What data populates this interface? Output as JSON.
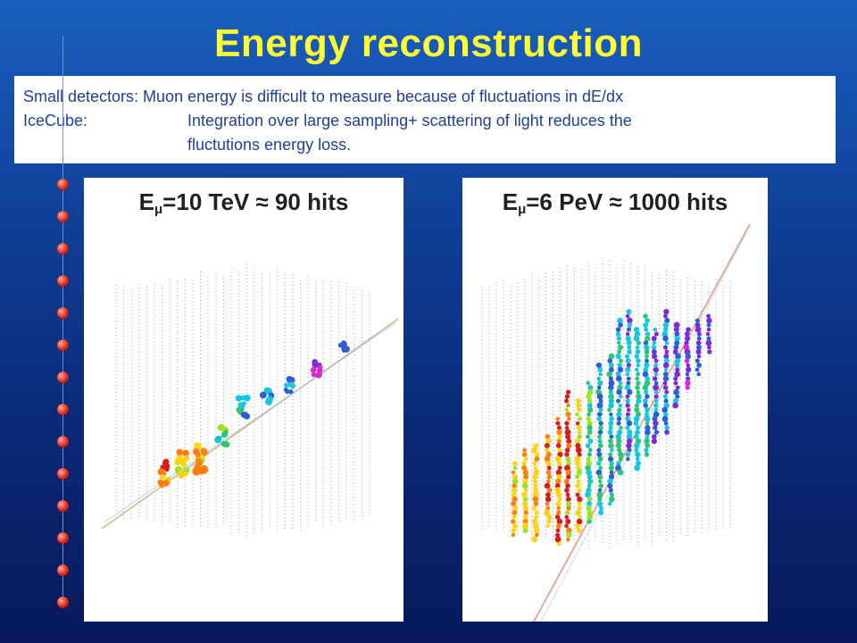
{
  "slide": {
    "title": "Energy reconstruction",
    "note": {
      "row1": "Small detectors: Muon energy is difficult to measure because of fluctuations in dE/dx",
      "row2_label": "IceCube:",
      "row2_text": "Integration over large sampling+ scattering of light reduces the",
      "row3_text": "fluctutions energy loss."
    }
  },
  "panels": [
    {
      "e_prefix": "E",
      "e_sub": "μ",
      "e_value": "=10 TeV ≈ 90 hits"
    },
    {
      "e_prefix": "E",
      "e_sub": "μ",
      "e_value": "=6 PeV  ≈ 1000 hits"
    }
  ],
  "colors": {
    "title": "#ffff33",
    "note_text": "#1f3e9e",
    "hit_palette": [
      "#d81b1b",
      "#ff7f0e",
      "#ffd21a",
      "#9be32b",
      "#2ec47a",
      "#19c6e0",
      "#2c5fd6",
      "#7a2cd6",
      "#d62ccf"
    ]
  }
}
